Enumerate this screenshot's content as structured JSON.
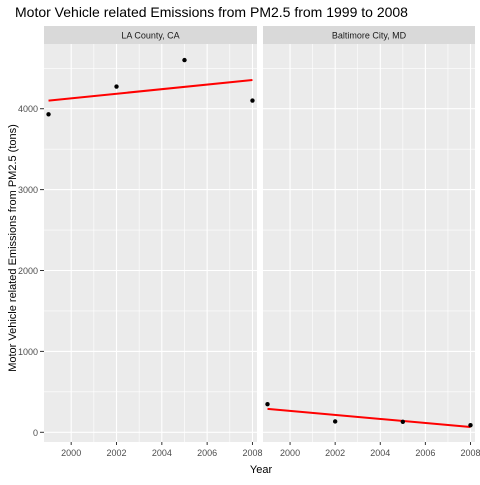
{
  "chart_data": {
    "type": "scatter",
    "title": "Motor Vehicle related Emissions from PM2.5 from 1999 to 2008",
    "xlabel": "Year",
    "ylabel": "Motor Vehicle related Emissions from PM2.5 (tons)",
    "xlim": [
      1998.8,
      2008.2
    ],
    "ylim": [
      -120,
      4800
    ],
    "x_ticks": [
      2000,
      2002,
      2004,
      2006,
      2008
    ],
    "y_ticks": [
      0,
      1000,
      2000,
      3000,
      4000
    ],
    "grid": true,
    "panels": [
      {
        "label": "LA County, CA",
        "points": [
          {
            "x": 1999,
            "y": 3931
          },
          {
            "x": 2002,
            "y": 4274
          },
          {
            "x": 2005,
            "y": 4601
          },
          {
            "x": 2008,
            "y": 4101
          }
        ],
        "trend": {
          "type": "linear",
          "start": {
            "x": 1999,
            "y": 4100
          },
          "end": {
            "x": 2008,
            "y": 4355
          }
        }
      },
      {
        "label": "Baltimore City, MD",
        "points": [
          {
            "x": 1999,
            "y": 347
          },
          {
            "x": 2002,
            "y": 134
          },
          {
            "x": 2005,
            "y": 130
          },
          {
            "x": 2008,
            "y": 88
          }
        ],
        "trend": {
          "type": "linear",
          "start": {
            "x": 1999,
            "y": 290
          },
          "end": {
            "x": 2008,
            "y": 65
          }
        }
      }
    ],
    "colors": {
      "panel_bg": "#ebebeb",
      "strip_bg": "#d9d9d9",
      "grid": "#ffffff",
      "point": "#000000",
      "trend": "#ff0000",
      "text": "#000000",
      "tick_text": "#4d4d4d"
    }
  }
}
